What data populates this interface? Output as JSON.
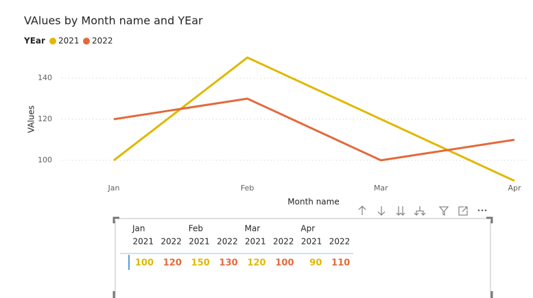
{
  "chart_data": {
    "type": "line",
    "title": "VAlues by Month name and YEar",
    "legend_title": "YEar",
    "x_label": "Month name",
    "y_label": "VAlues",
    "categories": [
      "Jan",
      "Feb",
      "Mar",
      "Apr"
    ],
    "series": [
      {
        "name": "2021",
        "color": "#e0b800",
        "values": [
          100,
          150,
          120,
          90
        ]
      },
      {
        "name": "2022",
        "color": "#e3693a",
        "values": [
          120,
          130,
          100,
          110
        ]
      }
    ],
    "ylim": [
      90,
      150
    ],
    "yticks": [
      100,
      120,
      140
    ],
    "grid": true,
    "legend_position": "top-left"
  }
}
